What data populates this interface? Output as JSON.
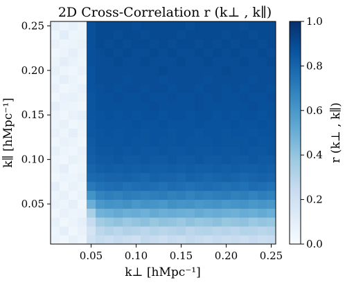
{
  "chart_data": {
    "type": "heatmap",
    "title": "2D Cross-Correlation r (k⊥ , k∥)",
    "xlabel": "k⊥ [hMpc⁻¹]",
    "ylabel": "k∥ [hMpc⁻¹]",
    "colorbar_label": "r (k⊥ , k∥)",
    "colormap": "Blues",
    "xlim": [
      0.005,
      0.255
    ],
    "ylim": [
      0.005,
      0.255
    ],
    "clim": [
      0.0,
      1.0
    ],
    "x_ticks": [
      0.05,
      0.1,
      0.15,
      0.2,
      0.25
    ],
    "x_tick_labels": [
      "0.05",
      "0.10",
      "0.15",
      "0.20",
      "0.25"
    ],
    "y_ticks": [
      0.05,
      0.1,
      0.15,
      0.2,
      0.25
    ],
    "y_tick_labels": [
      "0.05",
      "0.10",
      "0.15",
      "0.20",
      "0.25"
    ],
    "colorbar_ticks": [
      0.0,
      0.2,
      0.4,
      0.6,
      0.8,
      1.0
    ],
    "colorbar_tick_labels": [
      "0.0",
      "0.2",
      "0.4",
      "0.6",
      "0.8",
      "1.0"
    ],
    "grid": false,
    "x_centers": [
      0.01,
      0.02,
      0.03,
      0.04,
      0.05,
      0.06,
      0.07,
      0.08,
      0.09,
      0.1,
      0.11,
      0.12,
      0.13,
      0.14,
      0.15,
      0.16,
      0.17,
      0.18,
      0.19,
      0.2,
      0.21,
      0.22,
      0.23,
      0.24,
      0.25
    ],
    "y_centers": [
      0.01,
      0.02,
      0.03,
      0.04,
      0.05,
      0.06,
      0.07,
      0.08,
      0.09,
      0.1,
      0.11,
      0.12,
      0.13,
      0.14,
      0.15,
      0.16,
      0.17,
      0.18,
      0.19,
      0.2,
      0.21,
      0.22,
      0.23,
      0.24,
      0.25
    ],
    "values": [
      [
        0.06,
        0.04,
        0.08,
        0.05,
        0.2,
        0.24,
        0.22,
        0.25,
        0.23,
        0.21,
        0.26,
        0.24,
        0.22,
        0.25,
        0.23,
        0.26,
        0.24,
        0.22,
        0.25,
        0.23,
        0.24,
        0.22,
        0.25,
        0.23,
        0.24
      ],
      [
        0.05,
        0.09,
        0.04,
        0.07,
        0.18,
        0.28,
        0.31,
        0.29,
        0.32,
        0.3,
        0.28,
        0.31,
        0.29,
        0.3,
        0.32,
        0.28,
        0.3,
        0.31,
        0.29,
        0.3,
        0.28,
        0.31,
        0.3,
        0.29,
        0.3
      ],
      [
        0.08,
        0.04,
        0.06,
        0.09,
        0.24,
        0.36,
        0.39,
        0.41,
        0.38,
        0.4,
        0.42,
        0.39,
        0.41,
        0.4,
        0.38,
        0.41,
        0.39,
        0.4,
        0.42,
        0.39,
        0.4,
        0.41,
        0.38,
        0.4,
        0.39
      ],
      [
        0.04,
        0.07,
        0.05,
        0.06,
        0.34,
        0.48,
        0.5,
        0.52,
        0.5,
        0.51,
        0.49,
        0.52,
        0.5,
        0.51,
        0.5,
        0.49,
        0.52,
        0.5,
        0.51,
        0.5,
        0.49,
        0.51,
        0.5,
        0.52,
        0.5
      ],
      [
        0.07,
        0.05,
        0.09,
        0.04,
        0.5,
        0.6,
        0.62,
        0.61,
        0.63,
        0.6,
        0.62,
        0.61,
        0.6,
        0.63,
        0.61,
        0.62,
        0.6,
        0.61,
        0.62,
        0.6,
        0.61,
        0.62,
        0.6,
        0.61,
        0.6
      ],
      [
        0.05,
        0.08,
        0.04,
        0.07,
        0.62,
        0.68,
        0.7,
        0.69,
        0.71,
        0.7,
        0.69,
        0.7,
        0.71,
        0.69,
        0.7,
        0.68,
        0.7,
        0.69,
        0.7,
        0.71,
        0.69,
        0.7,
        0.68,
        0.7,
        0.69
      ],
      [
        0.09,
        0.04,
        0.07,
        0.05,
        0.72,
        0.75,
        0.76,
        0.77,
        0.75,
        0.76,
        0.77,
        0.76,
        0.75,
        0.77,
        0.76,
        0.75,
        0.76,
        0.77,
        0.76,
        0.75,
        0.76,
        0.75,
        0.77,
        0.76,
        0.75
      ],
      [
        0.04,
        0.06,
        0.05,
        0.08,
        0.78,
        0.79,
        0.8,
        0.8,
        0.81,
        0.8,
        0.79,
        0.81,
        0.8,
        0.8,
        0.79,
        0.81,
        0.8,
        0.79,
        0.8,
        0.81,
        0.8,
        0.79,
        0.8,
        0.81,
        0.8
      ],
      [
        0.06,
        0.09,
        0.04,
        0.05,
        0.8,
        0.82,
        0.83,
        0.82,
        0.83,
        0.82,
        0.83,
        0.82,
        0.82,
        0.83,
        0.82,
        0.83,
        0.82,
        0.82,
        0.83,
        0.82,
        0.83,
        0.82,
        0.82,
        0.83,
        0.82
      ],
      [
        0.05,
        0.04,
        0.08,
        0.06,
        0.82,
        0.84,
        0.84,
        0.85,
        0.84,
        0.84,
        0.85,
        0.84,
        0.84,
        0.85,
        0.84,
        0.84,
        0.85,
        0.84,
        0.84,
        0.85,
        0.84,
        0.84,
        0.85,
        0.84,
        0.84
      ],
      [
        0.08,
        0.05,
        0.04,
        0.07,
        0.83,
        0.85,
        0.85,
        0.86,
        0.85,
        0.86,
        0.85,
        0.85,
        0.86,
        0.85,
        0.85,
        0.86,
        0.85,
        0.85,
        0.86,
        0.85,
        0.85,
        0.86,
        0.85,
        0.85,
        0.86
      ],
      [
        0.04,
        0.07,
        0.06,
        0.04,
        0.84,
        0.86,
        0.86,
        0.86,
        0.87,
        0.86,
        0.86,
        0.87,
        0.86,
        0.86,
        0.87,
        0.86,
        0.86,
        0.86,
        0.87,
        0.86,
        0.86,
        0.86,
        0.87,
        0.86,
        0.86
      ],
      [
        0.07,
        0.05,
        0.09,
        0.05,
        0.85,
        0.86,
        0.87,
        0.86,
        0.87,
        0.87,
        0.86,
        0.87,
        0.87,
        0.86,
        0.87,
        0.87,
        0.86,
        0.87,
        0.87,
        0.86,
        0.87,
        0.87,
        0.86,
        0.87,
        0.87
      ],
      [
        0.05,
        0.08,
        0.04,
        0.06,
        0.85,
        0.87,
        0.87,
        0.87,
        0.87,
        0.88,
        0.87,
        0.87,
        0.88,
        0.87,
        0.87,
        0.87,
        0.88,
        0.87,
        0.87,
        0.87,
        0.88,
        0.87,
        0.87,
        0.88,
        0.87
      ],
      [
        0.06,
        0.04,
        0.07,
        0.09,
        0.86,
        0.87,
        0.88,
        0.87,
        0.88,
        0.87,
        0.88,
        0.88,
        0.87,
        0.88,
        0.88,
        0.87,
        0.88,
        0.88,
        0.87,
        0.88,
        0.87,
        0.88,
        0.88,
        0.87,
        0.88
      ],
      [
        0.09,
        0.06,
        0.05,
        0.04,
        0.86,
        0.88,
        0.88,
        0.88,
        0.88,
        0.88,
        0.88,
        0.89,
        0.88,
        0.88,
        0.88,
        0.88,
        0.89,
        0.88,
        0.88,
        0.88,
        0.88,
        0.88,
        0.89,
        0.88,
        0.88
      ],
      [
        0.04,
        0.07,
        0.08,
        0.06,
        0.86,
        0.88,
        0.88,
        0.89,
        0.88,
        0.88,
        0.89,
        0.88,
        0.88,
        0.89,
        0.88,
        0.88,
        0.89,
        0.88,
        0.89,
        0.88,
        0.88,
        0.89,
        0.88,
        0.88,
        0.89
      ],
      [
        0.07,
        0.04,
        0.05,
        0.08,
        0.87,
        0.88,
        0.89,
        0.88,
        0.89,
        0.89,
        0.88,
        0.89,
        0.89,
        0.88,
        0.89,
        0.89,
        0.88,
        0.89,
        0.89,
        0.88,
        0.89,
        0.88,
        0.89,
        0.89,
        0.88
      ],
      [
        0.05,
        0.09,
        0.06,
        0.04,
        0.87,
        0.89,
        0.89,
        0.89,
        0.88,
        0.89,
        0.89,
        0.89,
        0.88,
        0.89,
        0.89,
        0.89,
        0.89,
        0.88,
        0.89,
        0.89,
        0.89,
        0.89,
        0.88,
        0.89,
        0.89
      ],
      [
        0.08,
        0.05,
        0.04,
        0.07,
        0.87,
        0.89,
        0.89,
        0.89,
        0.89,
        0.89,
        0.89,
        0.89,
        0.9,
        0.89,
        0.89,
        0.89,
        0.89,
        0.89,
        0.89,
        0.9,
        0.89,
        0.89,
        0.89,
        0.89,
        0.89
      ],
      [
        0.06,
        0.1,
        0.07,
        0.05,
        0.88,
        0.89,
        0.89,
        0.9,
        0.89,
        0.89,
        0.9,
        0.89,
        0.89,
        0.89,
        0.9,
        0.89,
        0.89,
        0.9,
        0.89,
        0.89,
        0.89,
        0.9,
        0.89,
        0.89,
        0.9
      ],
      [
        0.04,
        0.06,
        0.09,
        0.06,
        0.88,
        0.89,
        0.9,
        0.89,
        0.9,
        0.89,
        0.89,
        0.9,
        0.89,
        0.9,
        0.89,
        0.89,
        0.9,
        0.89,
        0.9,
        0.89,
        0.9,
        0.89,
        0.89,
        0.9,
        0.89
      ],
      [
        0.07,
        0.05,
        0.06,
        0.08,
        0.88,
        0.9,
        0.89,
        0.9,
        0.89,
        0.9,
        0.9,
        0.89,
        0.9,
        0.89,
        0.9,
        0.9,
        0.89,
        0.9,
        0.89,
        0.9,
        0.89,
        0.9,
        0.9,
        0.89,
        0.9
      ],
      [
        0.05,
        0.11,
        0.05,
        0.06,
        0.88,
        0.9,
        0.9,
        0.89,
        0.9,
        0.9,
        0.89,
        0.9,
        0.9,
        0.9,
        0.89,
        0.9,
        0.9,
        0.9,
        0.9,
        0.89,
        0.9,
        0.9,
        0.89,
        0.9,
        0.9
      ],
      [
        0.09,
        0.06,
        0.08,
        0.05,
        0.88,
        0.9,
        0.9,
        0.9,
        0.9,
        0.89,
        0.9,
        0.9,
        0.9,
        0.9,
        0.9,
        0.89,
        0.9,
        0.9,
        0.9,
        0.9,
        0.9,
        0.89,
        0.9,
        0.9,
        0.9
      ]
    ]
  }
}
